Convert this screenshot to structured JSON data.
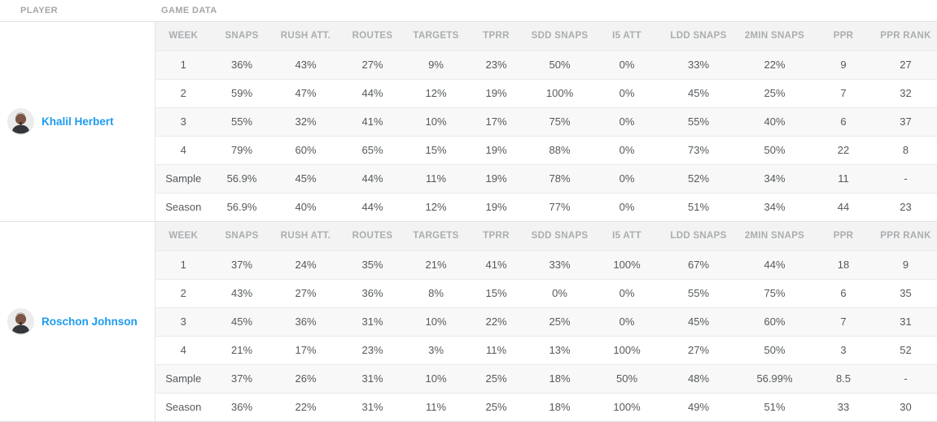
{
  "headers": {
    "player": "PLAYER",
    "game_data": "GAME DATA"
  },
  "columns": [
    "WEEK",
    "SNAPS",
    "RUSH ATT.",
    "ROUTES",
    "TARGETS",
    "TPRR",
    "SDD SNAPS",
    "I5 ATT",
    "LDD SNAPS",
    "2MIN SNAPS",
    "PPR",
    "PPR RANK"
  ],
  "players": [
    {
      "name": "Khalil Herbert",
      "avatar_icon": "player-headshot-avatar",
      "rows": [
        [
          "1",
          "36%",
          "43%",
          "27%",
          "9%",
          "23%",
          "50%",
          "0%",
          "33%",
          "22%",
          "9",
          "27"
        ],
        [
          "2",
          "59%",
          "47%",
          "44%",
          "12%",
          "19%",
          "100%",
          "0%",
          "45%",
          "25%",
          "7",
          "32"
        ],
        [
          "3",
          "55%",
          "32%",
          "41%",
          "10%",
          "17%",
          "75%",
          "0%",
          "55%",
          "40%",
          "6",
          "37"
        ],
        [
          "4",
          "79%",
          "60%",
          "65%",
          "15%",
          "19%",
          "88%",
          "0%",
          "73%",
          "50%",
          "22",
          "8"
        ],
        [
          "Sample",
          "56.9%",
          "45%",
          "44%",
          "11%",
          "19%",
          "78%",
          "0%",
          "52%",
          "34%",
          "11",
          "-"
        ],
        [
          "Season",
          "56.9%",
          "40%",
          "44%",
          "12%",
          "19%",
          "77%",
          "0%",
          "51%",
          "34%",
          "44",
          "23"
        ]
      ]
    },
    {
      "name": "Roschon Johnson",
      "avatar_icon": "player-headshot-avatar",
      "rows": [
        [
          "1",
          "37%",
          "24%",
          "35%",
          "21%",
          "41%",
          "33%",
          "100%",
          "67%",
          "44%",
          "18",
          "9"
        ],
        [
          "2",
          "43%",
          "27%",
          "36%",
          "8%",
          "15%",
          "0%",
          "0%",
          "55%",
          "75%",
          "6",
          "35"
        ],
        [
          "3",
          "45%",
          "36%",
          "31%",
          "10%",
          "22%",
          "25%",
          "0%",
          "45%",
          "60%",
          "7",
          "31"
        ],
        [
          "4",
          "21%",
          "17%",
          "23%",
          "3%",
          "11%",
          "13%",
          "100%",
          "27%",
          "50%",
          "3",
          "52"
        ],
        [
          "Sample",
          "37%",
          "26%",
          "31%",
          "10%",
          "25%",
          "18%",
          "50%",
          "48%",
          "56.99%",
          "8.5",
          "-"
        ],
        [
          "Season",
          "36%",
          "22%",
          "31%",
          "11%",
          "25%",
          "18%",
          "100%",
          "49%",
          "51%",
          "33",
          "30"
        ]
      ]
    }
  ],
  "colors": {
    "player_link": "#1d9bf0",
    "header_text": "#a3a6a9",
    "cell_text": "#55595c",
    "stripe_bg": "#f8f8f8",
    "header_row_bg": "#f3f3f3",
    "divider": "#e0e0e0"
  }
}
